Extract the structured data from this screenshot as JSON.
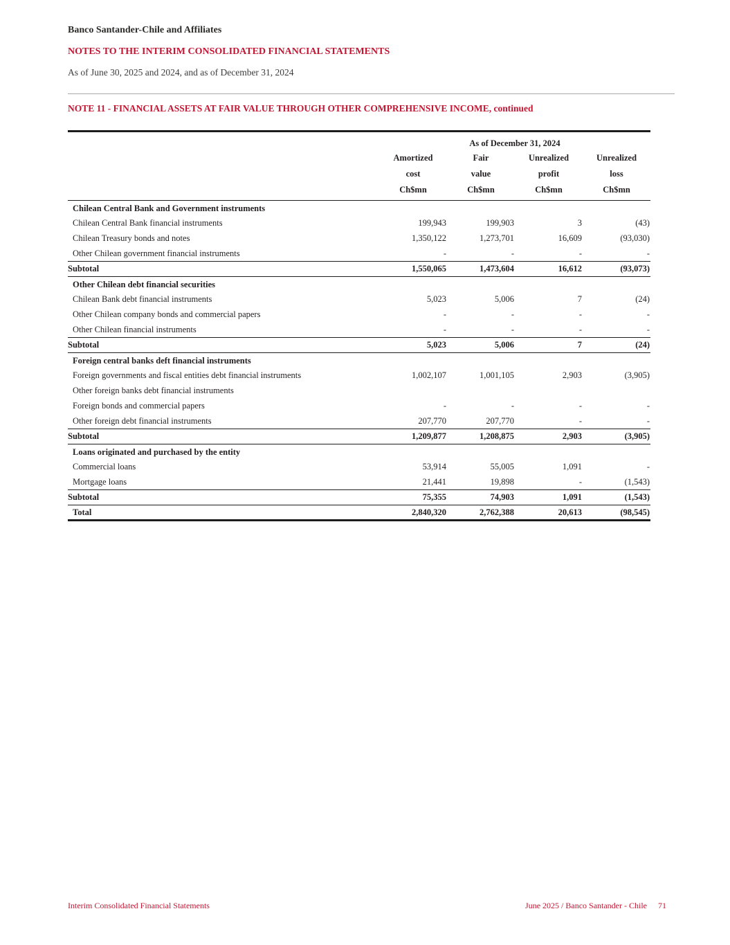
{
  "colors": {
    "accent_red": "#c21632"
  },
  "header": {
    "company": "Banco Santander-Chile and Affiliates",
    "doc_title": "NOTES TO THE INTERIM CONSOLIDATED FINANCIAL STATEMENTS",
    "date_line": "As of June 30, 2025 and 2024, and as of December 31, 2024",
    "note_title": "NOTE 11 - FINANCIAL ASSETS AT FAIR VALUE THROUGH OTHER COMPREHENSIVE INCOME, continued"
  },
  "table": {
    "span_header": "As of December 31, 2024",
    "columns": [
      {
        "line1": "Amortized",
        "line2": "cost",
        "line3": "Ch$mn"
      },
      {
        "line1": "Fair",
        "line2": "value",
        "line3": "Ch$mn"
      },
      {
        "line1": "Unrealized",
        "line2": "profit",
        "line3": "Ch$mn"
      },
      {
        "line1": "Unrealized",
        "line2": "loss",
        "line3": "Ch$mn"
      }
    ],
    "rows": [
      {
        "type": "section",
        "label": "Chilean Central Bank and Government instruments",
        "values": [
          "",
          "",
          "",
          ""
        ]
      },
      {
        "type": "data",
        "label": "Chilean Central Bank financial instruments",
        "values": [
          "199,943",
          "199,903",
          "3",
          "(43)"
        ]
      },
      {
        "type": "data",
        "label": "Chilean Treasury bonds and notes",
        "values": [
          "1,350,122",
          "1,273,701",
          "16,609",
          "(93,030)"
        ]
      },
      {
        "type": "data",
        "label": "Other Chilean government financial instruments",
        "values": [
          "-",
          "-",
          "-",
          "-"
        ]
      },
      {
        "type": "subtotal",
        "label": "Subtotal",
        "values": [
          "1,550,065",
          "1,473,604",
          "16,612",
          "(93,073)"
        ]
      },
      {
        "type": "section",
        "label": "Other Chilean debt financial securities",
        "values": [
          "",
          "",
          "",
          ""
        ]
      },
      {
        "type": "data",
        "label": "Chilean Bank debt financial instruments",
        "values": [
          "5,023",
          "5,006",
          "7",
          "(24)"
        ]
      },
      {
        "type": "data",
        "label": "Other Chilean company bonds and commercial papers",
        "values": [
          "-",
          "-",
          "-",
          "-"
        ]
      },
      {
        "type": "data",
        "label": "Other Chilean financial instruments",
        "values": [
          "-",
          "-",
          "-",
          "-"
        ]
      },
      {
        "type": "subtotal",
        "label": "Subtotal",
        "values": [
          "5,023",
          "5,006",
          "7",
          "(24)"
        ]
      },
      {
        "type": "section",
        "label": "Foreign central banks deft financial instruments",
        "values": [
          "",
          "",
          "",
          ""
        ]
      },
      {
        "type": "data",
        "label": "Foreign governments and fiscal entities debt financial instruments",
        "values": [
          "1,002,107",
          "1,001,105",
          "2,903",
          "(3,905)"
        ]
      },
      {
        "type": "data",
        "label": "Other foreign banks debt financial instruments",
        "values": [
          "",
          "",
          "",
          ""
        ]
      },
      {
        "type": "data",
        "label": "Foreign bonds and commercial papers",
        "values": [
          "-",
          "-",
          "-",
          "-"
        ]
      },
      {
        "type": "data",
        "label": "Other foreign debt financial instruments",
        "values": [
          "207,770",
          "207,770",
          "-",
          "-"
        ]
      },
      {
        "type": "subtotal",
        "label": "Subtotal",
        "values": [
          "1,209,877",
          "1,208,875",
          "2,903",
          "(3,905)"
        ]
      },
      {
        "type": "section",
        "label": "Loans originated and purchased by the entity",
        "values": [
          "",
          "",
          "",
          ""
        ]
      },
      {
        "type": "data",
        "label": "Commercial loans",
        "values": [
          "53,914",
          "55,005",
          "1,091",
          "-"
        ]
      },
      {
        "type": "data",
        "label": "Mortgage loans",
        "values": [
          "21,441",
          "19,898",
          "-",
          "(1,543)"
        ]
      },
      {
        "type": "subtotal",
        "label": "Subtotal",
        "values": [
          "75,355",
          "74,903",
          "1,091",
          "(1,543)"
        ]
      },
      {
        "type": "total",
        "label": "Total",
        "values": [
          "2,840,320",
          "2,762,388",
          "20,613",
          "(98,545)"
        ]
      }
    ]
  },
  "footer": {
    "left": "Interim Consolidated Financial Statements",
    "right": "June 2025 / Banco Santander - Chile",
    "page_number": "71"
  }
}
